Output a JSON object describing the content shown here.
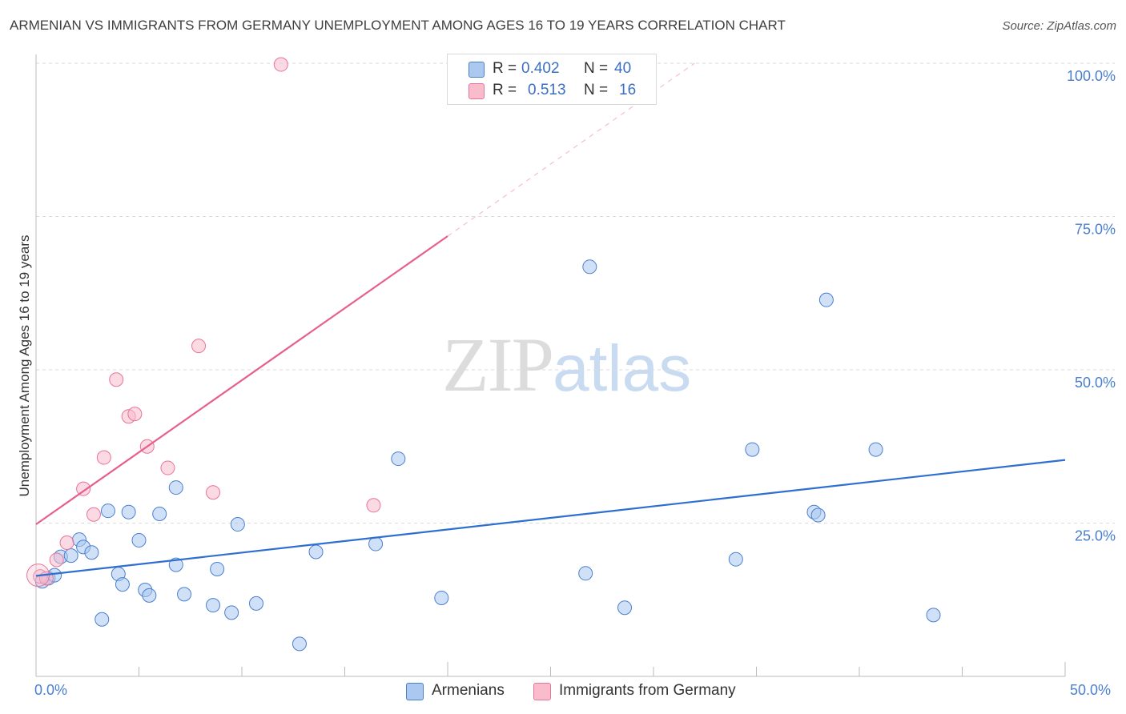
{
  "header": {
    "title": "ARMENIAN VS IMMIGRANTS FROM GERMANY UNEMPLOYMENT AMONG AGES 16 TO 19 YEARS CORRELATION CHART",
    "source": "Source: ZipAtlas.com"
  },
  "watermark": {
    "zip": "ZIP",
    "atlas": "atlas"
  },
  "legend": {
    "rows": [
      {
        "r_label": "R = ",
        "r_value": "0.402",
        "n_label": "N = ",
        "n_value": "40",
        "color": "#aac8f0"
      },
      {
        "r_label": "R = ",
        "r_value": "0.513",
        "n_label": "N = ",
        "n_value": "16",
        "color": "#f8bccd"
      }
    ]
  },
  "bottom_legend": {
    "armenians": "Armenians",
    "germany": "Immigrants from Germany"
  },
  "colors": {
    "blue": "#4a7fd0",
    "blue_fill": "#aac8f0",
    "blue_line": "#2f6fd0",
    "pink": "#e8749a",
    "pink_fill": "#f8bccd",
    "pink_line": "#e5608e",
    "grid": "#dadada"
  },
  "chart_data": {
    "type": "scatter",
    "title": "ARMENIAN VS IMMIGRANTS FROM GERMANY UNEMPLOYMENT AMONG AGES 16 TO 19 YEARS CORRELATION CHART",
    "xlabel": "",
    "ylabel": "Unemployment Among Ages 16 to 19 years",
    "xlim": [
      0,
      50
    ],
    "ylim": [
      0,
      102
    ],
    "x_tick_labels": [
      "0.0%",
      "50.0%"
    ],
    "y_ticks": [
      25,
      50,
      75,
      100
    ],
    "y_tick_labels": [
      "25.0%",
      "50.0%",
      "75.0%",
      "100.0%"
    ],
    "grid": true,
    "legend_position": "top-center",
    "series": [
      {
        "name": "Armenians",
        "points": [
          [
            0.3,
            15.5
          ],
          [
            0.6,
            16.0
          ],
          [
            0.9,
            16.5
          ],
          [
            1.2,
            19.5
          ],
          [
            1.7,
            19.7
          ],
          [
            2.1,
            22.3
          ],
          [
            2.3,
            21.1
          ],
          [
            2.7,
            20.2
          ],
          [
            3.2,
            9.3
          ],
          [
            3.5,
            27.0
          ],
          [
            4.0,
            16.7
          ],
          [
            4.2,
            15.0
          ],
          [
            4.5,
            26.8
          ],
          [
            5.0,
            22.2
          ],
          [
            5.3,
            14.1
          ],
          [
            5.5,
            13.2
          ],
          [
            6.0,
            26.5
          ],
          [
            6.8,
            30.8
          ],
          [
            6.8,
            18.2
          ],
          [
            7.2,
            13.4
          ],
          [
            8.6,
            11.6
          ],
          [
            8.8,
            17.5
          ],
          [
            9.5,
            10.4
          ],
          [
            9.8,
            24.8
          ],
          [
            10.7,
            11.9
          ],
          [
            12.8,
            5.3
          ],
          [
            13.6,
            20.3
          ],
          [
            16.5,
            21.6
          ],
          [
            17.6,
            35.5
          ],
          [
            19.7,
            12.8
          ],
          [
            26.7,
            16.8
          ],
          [
            26.9,
            66.8
          ],
          [
            28.6,
            11.2
          ],
          [
            34.0,
            19.1
          ],
          [
            34.8,
            37.0
          ],
          [
            37.8,
            26.8
          ],
          [
            38.0,
            26.3
          ],
          [
            38.4,
            61.4
          ],
          [
            40.8,
            37.0
          ],
          [
            43.6,
            10.0
          ]
        ],
        "trend": {
          "x": [
            0,
            50
          ],
          "y": [
            16.4,
            35.3
          ],
          "style": "solid"
        }
      },
      {
        "name": "Immigrants from Germany",
        "points": [
          [
            0.2,
            16.3
          ],
          [
            0.5,
            16.0
          ],
          [
            1.0,
            19.0
          ],
          [
            1.5,
            21.8
          ],
          [
            2.3,
            30.6
          ],
          [
            2.8,
            26.4
          ],
          [
            3.3,
            35.7
          ],
          [
            3.9,
            48.4
          ],
          [
            4.5,
            42.4
          ],
          [
            4.8,
            42.8
          ],
          [
            5.4,
            37.5
          ],
          [
            6.4,
            34.0
          ],
          [
            7.9,
            53.9
          ],
          [
            8.6,
            30.0
          ],
          [
            11.9,
            99.8
          ],
          [
            16.4,
            27.9
          ]
        ],
        "trend": {
          "x": [
            0,
            20
          ],
          "y": [
            24.8,
            71.8
          ],
          "style": "solid"
        },
        "trend_extension": {
          "x": [
            20,
            32
          ],
          "y": [
            71.8,
            100
          ],
          "style": "dashed"
        }
      }
    ]
  }
}
